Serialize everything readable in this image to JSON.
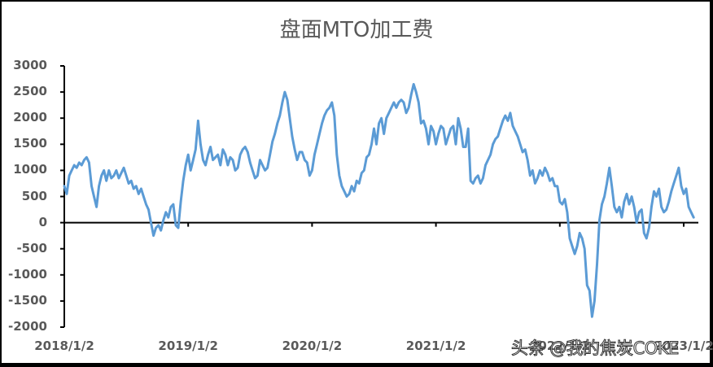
{
  "chart_data": {
    "type": "line",
    "title": "盘面MTO加工费",
    "xlabel": "",
    "ylabel": "",
    "ylim": [
      -2000,
      3000
    ],
    "yticks": [
      3000,
      2500,
      2000,
      1500,
      1000,
      500,
      0,
      -500,
      -1000,
      -1500,
      -2000
    ],
    "xticks": [
      "2018/1/2",
      "2019/1/2",
      "2020/1/2",
      "2021/1/2",
      "2022/1/2",
      "2023/1/2"
    ],
    "grid": false,
    "legend": "none",
    "line_color": "#5B9BD5",
    "series": [
      {
        "name": "盘面MTO加工费",
        "x_year_fraction": [
          0.0,
          0.02,
          0.04,
          0.06,
          0.08,
          0.1,
          0.12,
          0.14,
          0.16,
          0.18,
          0.2,
          0.22,
          0.24,
          0.26,
          0.28,
          0.3,
          0.32,
          0.34,
          0.36,
          0.38,
          0.4,
          0.42,
          0.44,
          0.46,
          0.48,
          0.5,
          0.52,
          0.54,
          0.56,
          0.58,
          0.6,
          0.62,
          0.64,
          0.66,
          0.68,
          0.7,
          0.72,
          0.74,
          0.76,
          0.78,
          0.8,
          0.82,
          0.84,
          0.86,
          0.88,
          0.9,
          0.92,
          0.94,
          0.96,
          0.98,
          1.0,
          1.02,
          1.04,
          1.06,
          1.08,
          1.1,
          1.12,
          1.14,
          1.16,
          1.18,
          1.2,
          1.22,
          1.24,
          1.26,
          1.28,
          1.3,
          1.32,
          1.34,
          1.36,
          1.38,
          1.4,
          1.42,
          1.44,
          1.46,
          1.48,
          1.5,
          1.52,
          1.54,
          1.56,
          1.58,
          1.6,
          1.62,
          1.64,
          1.66,
          1.68,
          1.7,
          1.72,
          1.74,
          1.76,
          1.78,
          1.8,
          1.82,
          1.84,
          1.86,
          1.88,
          1.9,
          1.92,
          1.94,
          1.96,
          1.98,
          2.0,
          2.02,
          2.04,
          2.06,
          2.08,
          2.1,
          2.12,
          2.14,
          2.16,
          2.18,
          2.2,
          2.22,
          2.24,
          2.26,
          2.28,
          2.3,
          2.32,
          2.34,
          2.36,
          2.38,
          2.4,
          2.42,
          2.44,
          2.46,
          2.48,
          2.5,
          2.52,
          2.54,
          2.56,
          2.58,
          2.6,
          2.62,
          2.64,
          2.66,
          2.68,
          2.7,
          2.72,
          2.74,
          2.76,
          2.78,
          2.8,
          2.82,
          2.84,
          2.86,
          2.88,
          2.9,
          2.92,
          2.94,
          2.96,
          2.98,
          3.0,
          3.02,
          3.04,
          3.06,
          3.08,
          3.1,
          3.12,
          3.14,
          3.16,
          3.18,
          3.2,
          3.22,
          3.24,
          3.26,
          3.28,
          3.3,
          3.32,
          3.34,
          3.36,
          3.38,
          3.4,
          3.42,
          3.44,
          3.46,
          3.48,
          3.5,
          3.52,
          3.54,
          3.56,
          3.58,
          3.6,
          3.62,
          3.64,
          3.66,
          3.68,
          3.7,
          3.72,
          3.74,
          3.76,
          3.78,
          3.8,
          3.82,
          3.84,
          3.86,
          3.88,
          3.9,
          3.92,
          3.94,
          3.96,
          3.98,
          4.0,
          4.02,
          4.04,
          4.06,
          4.08,
          4.1,
          4.12,
          4.14,
          4.16,
          4.18,
          4.2,
          4.22,
          4.24,
          4.26,
          4.28,
          4.3,
          4.32,
          4.34,
          4.36,
          4.38,
          4.4,
          4.42,
          4.44,
          4.46,
          4.48,
          4.5,
          4.52,
          4.54,
          4.56,
          4.58,
          4.6,
          4.62,
          4.64,
          4.66,
          4.68,
          4.7,
          4.72,
          4.74,
          4.76,
          4.78,
          4.8,
          4.82,
          4.84,
          4.86,
          4.88,
          4.9,
          4.92,
          4.94,
          4.96,
          4.98,
          5.0,
          5.02,
          5.04,
          5.06,
          5.08
        ],
        "values": [
          700,
          550,
          900,
          1000,
          1100,
          1050,
          1150,
          1100,
          1200,
          1250,
          1150,
          700,
          500,
          300,
          700,
          900,
          1000,
          800,
          1000,
          850,
          900,
          1000,
          850,
          950,
          1050,
          900,
          750,
          800,
          650,
          700,
          550,
          650,
          500,
          350,
          250,
          0,
          -250,
          -100,
          -50,
          -150,
          50,
          200,
          100,
          300,
          350,
          -50,
          -100,
          400,
          800,
          1100,
          1300,
          1000,
          1200,
          1400,
          1950,
          1500,
          1200,
          1100,
          1300,
          1450,
          1200,
          1250,
          1300,
          1100,
          1400,
          1300,
          1100,
          1250,
          1200,
          1000,
          1050,
          1300,
          1400,
          1450,
          1350,
          1150,
          1000,
          850,
          900,
          1200,
          1100,
          1000,
          1050,
          1300,
          1550,
          1700,
          1900,
          2050,
          2300,
          2500,
          2350,
          2000,
          1650,
          1400,
          1200,
          1350,
          1350,
          1200,
          1150,
          900,
          1000,
          1300,
          1500,
          1700,
          1900,
          2050,
          2150,
          2200,
          2300,
          2050,
          1300,
          900,
          700,
          600,
          500,
          550,
          700,
          600,
          800,
          750,
          950,
          1000,
          1250,
          1300,
          1500,
          1800,
          1500,
          1900,
          2000,
          1700,
          2000,
          2100,
          2200,
          2300,
          2200,
          2300,
          2350,
          2300,
          2100,
          2200,
          2450,
          2650,
          2500,
          2300,
          1900,
          1950,
          1800,
          1500,
          1850,
          1750,
          1500,
          1700,
          1850,
          1800,
          1500,
          1650,
          1800,
          1850,
          1500,
          2000,
          1800,
          1450,
          1450,
          1800,
          800,
          750,
          850,
          900,
          750,
          850,
          1100,
          1200,
          1300,
          1500,
          1600,
          1650,
          1800,
          1950,
          2050,
          1950,
          2100,
          1850,
          1750,
          1650,
          1500,
          1350,
          1400,
          1200,
          900,
          1000,
          750,
          850,
          1000,
          900,
          1050,
          950,
          800,
          850,
          700,
          700,
          400,
          350,
          450,
          200,
          -300,
          -450,
          -600,
          -450,
          -200,
          -300,
          -500,
          -1200,
          -1300,
          -1800,
          -1500,
          -800,
          50,
          350,
          500,
          750,
          1050,
          700,
          300,
          200,
          300,
          100,
          400,
          550,
          350,
          500,
          300,
          0,
          200,
          250,
          -200,
          -300,
          -100,
          300,
          600,
          500,
          650,
          300,
          200,
          250,
          400,
          600,
          750,
          900,
          1050,
          700,
          550,
          650,
          300,
          200,
          100,
          50,
          -150,
          -400,
          -300,
          -450,
          -200,
          -50,
          150,
          200,
          50,
          300,
          150,
          -100,
          -150,
          -100
        ]
      }
    ]
  },
  "watermark": "头条 @我的焦炭COKE"
}
